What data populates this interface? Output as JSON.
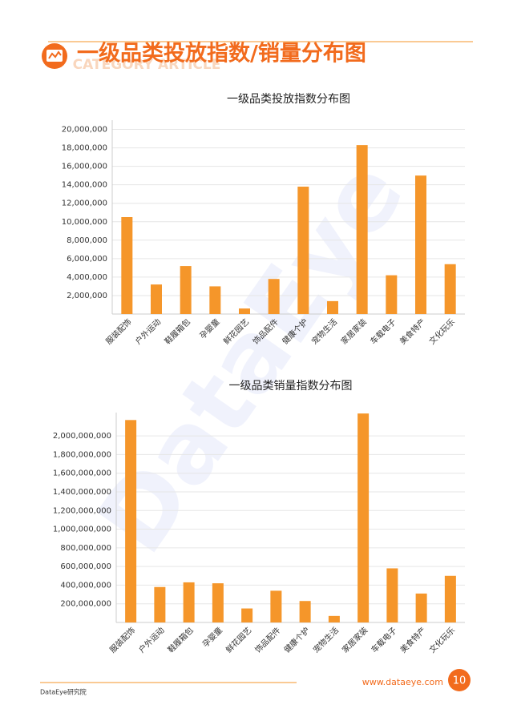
{
  "header": {
    "title": "一级品类投放指数/销量分布图",
    "subtitle": "CATEGORY ARTICLE"
  },
  "watermark": "DataEye",
  "footer": {
    "left": "DataEye研究院",
    "url": "www.dataeye.com",
    "page": 10
  },
  "chart_data": [
    {
      "type": "bar",
      "title": "一级品类投放指数分布图",
      "color": "#f5962a",
      "grid": true,
      "categories": [
        "服装配饰",
        "户外运动",
        "鞋履箱包",
        "孕婴童",
        "鲜花园艺",
        "饰品配件",
        "健康个护",
        "宠物生活",
        "家居家装",
        "车载电子",
        "美食特产",
        "文化玩乐"
      ],
      "values": [
        10500000,
        3200000,
        5200000,
        3000000,
        600000,
        3800000,
        13800000,
        1400000,
        18300000,
        4200000,
        15000000,
        5400000
      ],
      "ylim": [
        0,
        21000000
      ],
      "yticks": [
        {
          "value": 2000000,
          "label": "2,000,000"
        },
        {
          "value": 4000000,
          "label": "4,000,000"
        },
        {
          "value": 6000000,
          "label": "6,000,000"
        },
        {
          "value": 8000000,
          "label": "8,000,000"
        },
        {
          "value": 10000000,
          "label": "10,000,000"
        },
        {
          "value": 12000000,
          "label": "12,000,000"
        },
        {
          "value": 14000000,
          "label": "14,000,000"
        },
        {
          "value": 16000000,
          "label": "16,000,000"
        },
        {
          "value": 18000000,
          "label": "18,000,000"
        },
        {
          "value": 20000000,
          "label": "20,000,000"
        }
      ]
    },
    {
      "type": "bar",
      "title": "一级品类销量指数分布图",
      "color": "#f5962a",
      "grid": true,
      "categories": [
        "服装配饰",
        "户外运动",
        "鞋履箱包",
        "孕婴童",
        "鲜花园艺",
        "饰品配件",
        "健康个护",
        "宠物生活",
        "家居家装",
        "车载电子",
        "美食特产",
        "文化玩乐"
      ],
      "values": [
        2170000000,
        380000000,
        430000000,
        420000000,
        150000000,
        340000000,
        230000000,
        70000000,
        2240000000,
        580000000,
        310000000,
        500000000
      ],
      "ylim": [
        0,
        2250000000
      ],
      "yticks": [
        {
          "value": 200000000,
          "label": "200,000,000"
        },
        {
          "value": 400000000,
          "label": "400,000,000"
        },
        {
          "value": 600000000,
          "label": "600,000,000"
        },
        {
          "value": 800000000,
          "label": "800,000,000"
        },
        {
          "value": 1000000000,
          "label": "1,000,000,000"
        },
        {
          "value": 1200000000,
          "label": "1,200,000,000"
        },
        {
          "value": 1400000000,
          "label": "1,400,000,000"
        },
        {
          "value": 1600000000,
          "label": "1,600,000,000"
        },
        {
          "value": 1800000000,
          "label": "1,800,000,000"
        },
        {
          "value": 2000000000,
          "label": "2,000,000,000"
        }
      ]
    }
  ]
}
